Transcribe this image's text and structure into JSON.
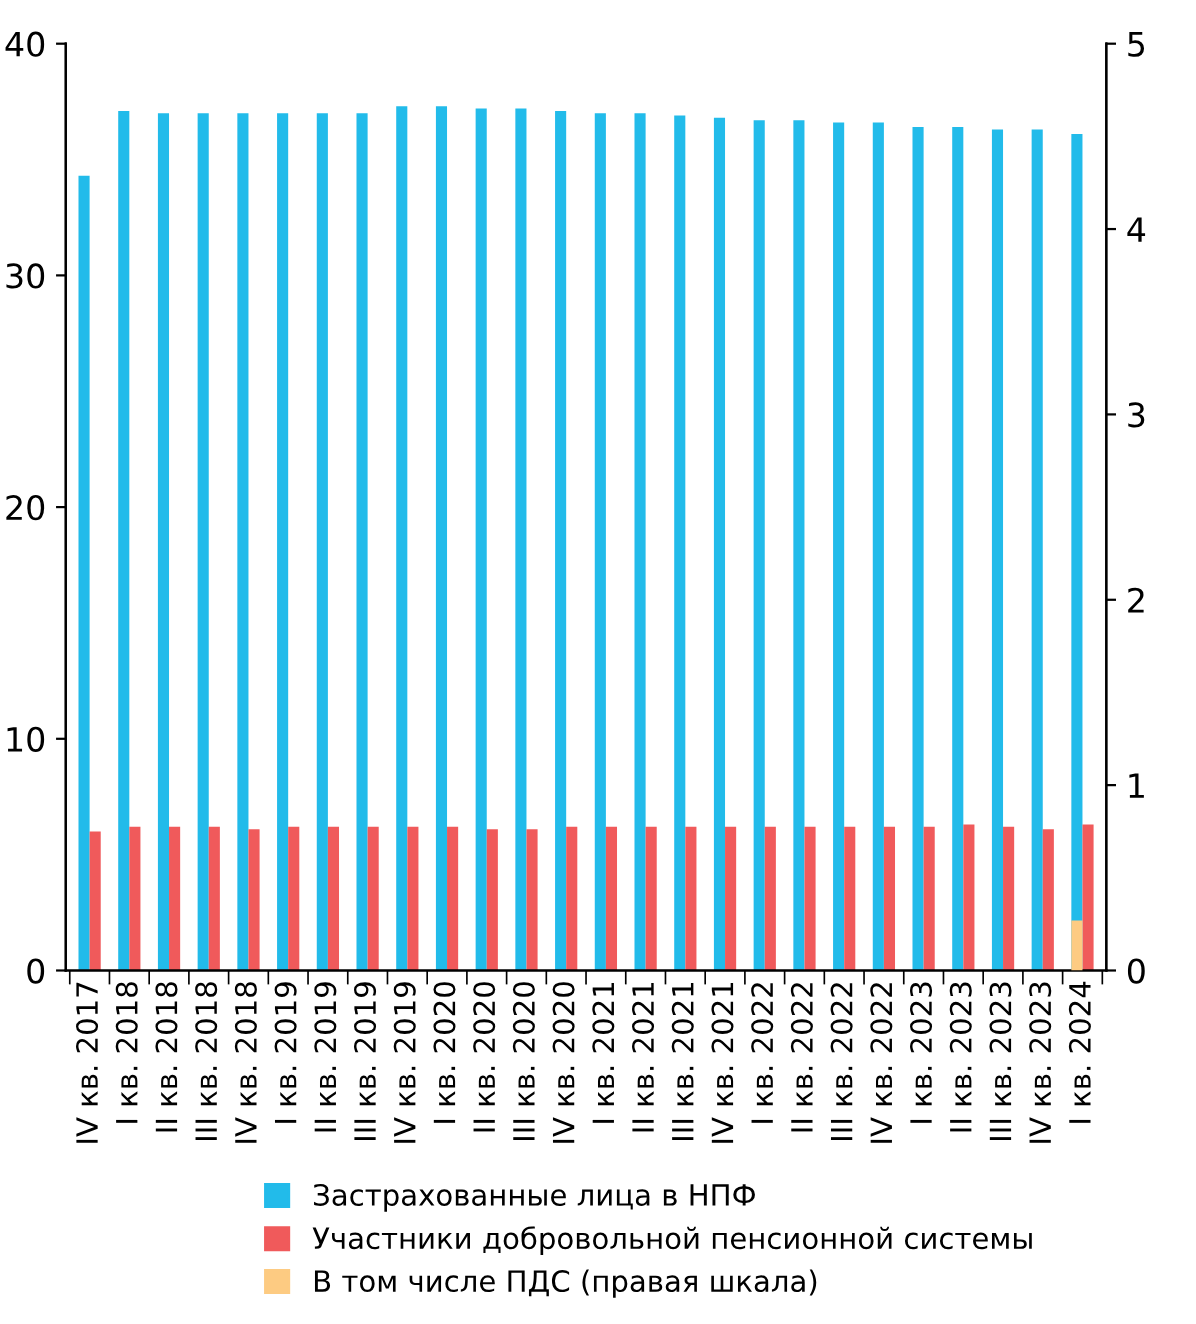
{
  "chart_data": {
    "type": "bar",
    "categories": [
      "IV кв. 2017",
      "I кв. 2018",
      "II кв. 2018",
      "III кв. 2018",
      "IV кв. 2018",
      "I кв. 2019",
      "II кв. 2019",
      "III кв. 2019",
      "IV кв. 2019",
      "I кв. 2020",
      "II кв. 2020",
      "III кв. 2020",
      "IV кв. 2020",
      "I кв. 2021",
      "II кв. 2021",
      "III кв. 2021",
      "IV кв. 2021",
      "I кв. 2022",
      "II кв. 2022",
      "III кв. 2022",
      "IV кв. 2022",
      "I кв. 2023",
      "II кв. 2023",
      "III кв. 2023",
      "IV кв. 2023",
      "I кв. 2024"
    ],
    "series": [
      {
        "name": "Застрахованные лица в НПФ",
        "color": "#22bbea",
        "values": [
          34.3,
          37.1,
          37.0,
          37.0,
          37.0,
          37.0,
          37.0,
          37.0,
          37.3,
          37.3,
          37.2,
          37.2,
          37.1,
          37.0,
          37.0,
          36.9,
          36.8,
          36.7,
          36.7,
          36.6,
          36.6,
          36.4,
          36.4,
          36.3,
          36.3,
          36.1
        ]
      },
      {
        "name": "Участники добровольной пенсионной системы",
        "color": "#f05a5b",
        "values": [
          6.0,
          6.2,
          6.2,
          6.2,
          6.1,
          6.2,
          6.2,
          6.2,
          6.2,
          6.2,
          6.1,
          6.1,
          6.2,
          6.2,
          6.2,
          6.2,
          6.2,
          6.2,
          6.2,
          6.2,
          6.2,
          6.2,
          6.3,
          6.2,
          6.1,
          6.3
        ]
      },
      {
        "name": "В том числе ПДС (правая шкала)",
        "color": "#fdcb82",
        "axis": "y2",
        "values": [
          null,
          null,
          null,
          null,
          null,
          null,
          null,
          null,
          null,
          null,
          null,
          null,
          null,
          null,
          null,
          null,
          null,
          null,
          null,
          null,
          null,
          null,
          null,
          null,
          null,
          0.27
        ]
      }
    ],
    "ylim": [
      0,
      40
    ],
    "yticks": [
      0,
      10,
      20,
      30,
      40
    ],
    "y2lim": [
      0,
      5
    ],
    "y2ticks": [
      0,
      1,
      2,
      3,
      4,
      5
    ],
    "grid": false,
    "legend": "bottom"
  }
}
